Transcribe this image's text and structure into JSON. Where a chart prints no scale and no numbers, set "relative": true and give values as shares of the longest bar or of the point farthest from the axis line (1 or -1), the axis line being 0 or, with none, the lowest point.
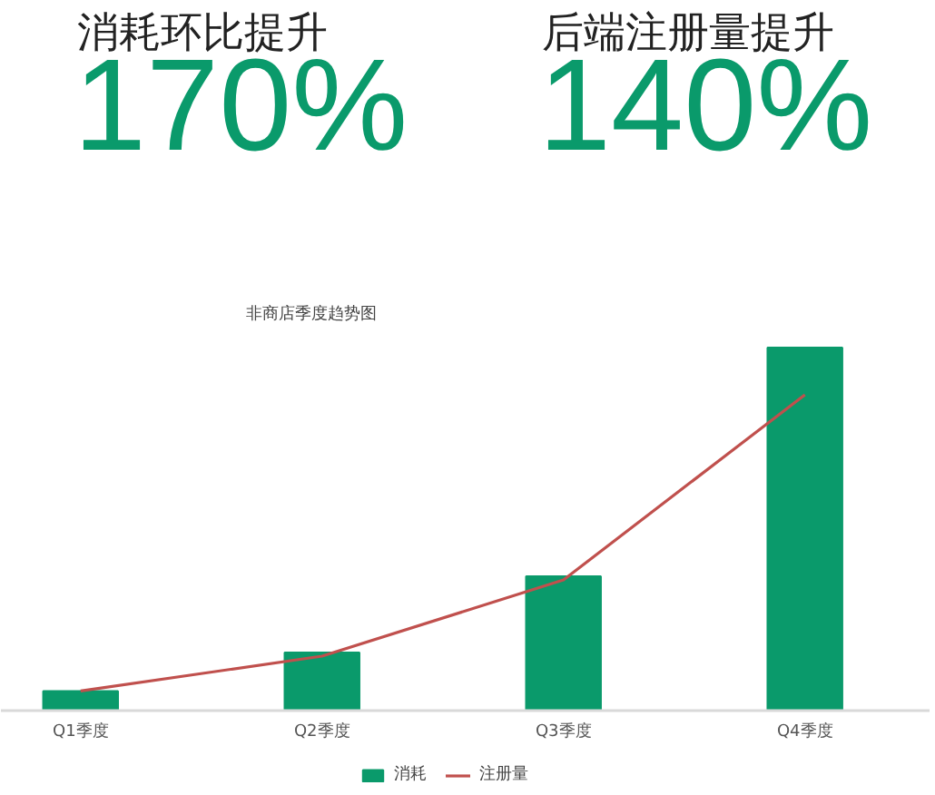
{
  "chart_data": {
    "type": "bar",
    "title": "非商店季度趋势图",
    "relative": true,
    "annotations": [
      "消耗环比提升",
      "170%",
      "后端注册量提升",
      "140%"
    ],
    "categories": [
      "Q1季度",
      "Q2季度",
      "Q3季度",
      "Q4季度"
    ],
    "series": [
      {
        "name": "消耗",
        "color": "#0a9a6b",
        "values": [
          0.054,
          0.16,
          0.37,
          1
        ]
      },
      {
        "name": "注册量",
        "type": "line",
        "color": "#c0504d",
        "values": [
          0.054,
          0.15,
          0.36,
          0.87
        ]
      }
    ],
    "legend": "bottom",
    "grid": false
  }
}
